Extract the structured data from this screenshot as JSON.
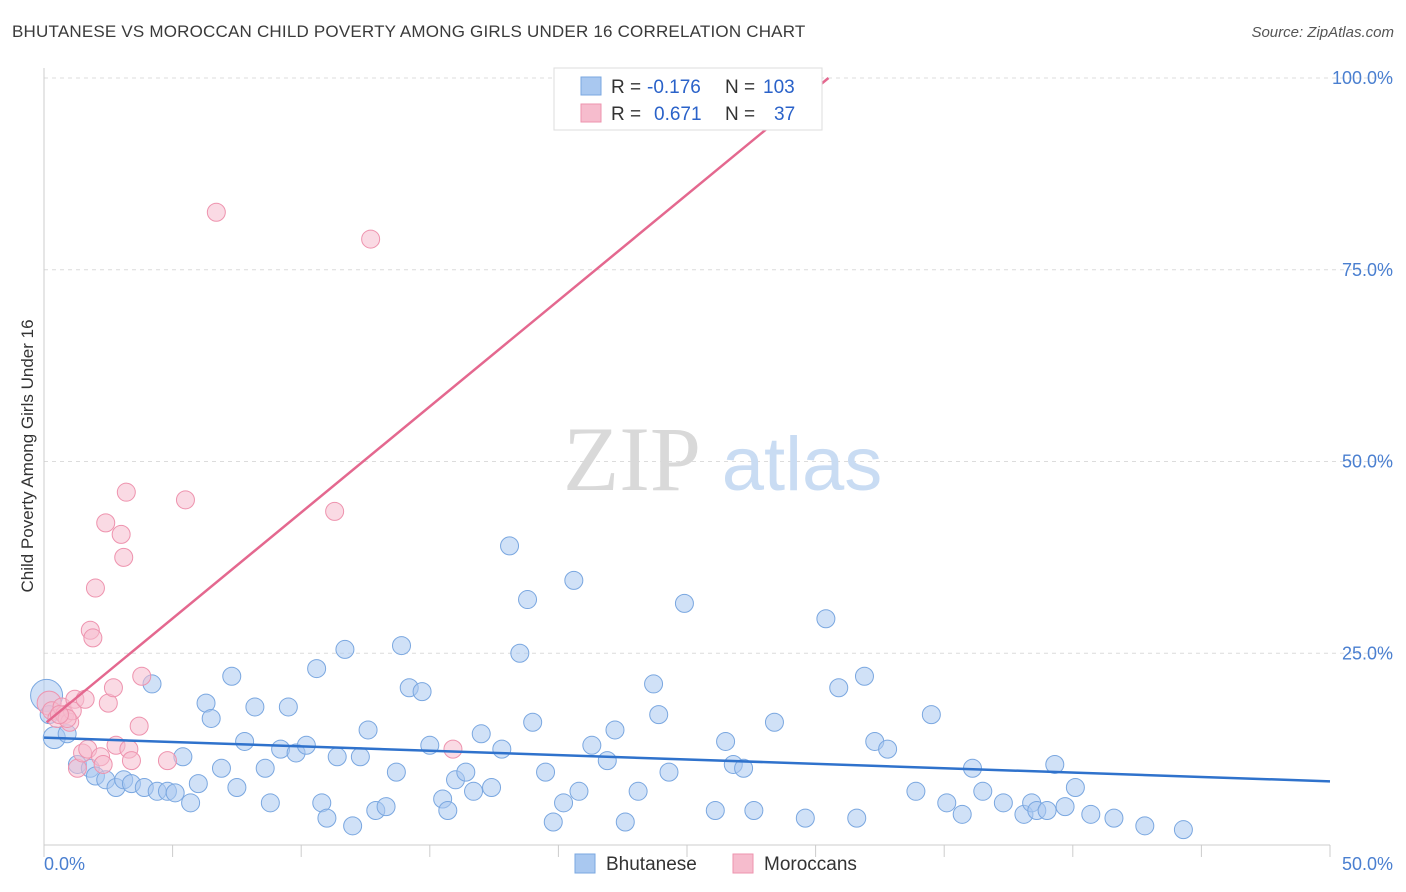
{
  "title": "BHUTANESE VS MOROCCAN CHILD POVERTY AMONG GIRLS UNDER 16 CORRELATION CHART",
  "source": "Source: ZipAtlas.com",
  "watermark": {
    "zip": "ZIP",
    "atlas": "atlas"
  },
  "colors": {
    "bhutanese_fill": "#a9c8f0",
    "bhutanese_stroke": "#7aa7e0",
    "bhutanese_line": "#2f72cc",
    "moroccan_fill": "#f6bccd",
    "moroccan_stroke": "#ee93ae",
    "moroccan_line": "#e4688f",
    "tick_text": "#4a7fd0"
  },
  "legend": {
    "rows": [
      {
        "r_label": "R =",
        "r_value": "-0.176",
        "n_label": "N =",
        "n_value": "103"
      },
      {
        "r_label": "R =",
        "r_value": "0.671",
        "n_label": "N =",
        "n_value": "37"
      }
    ]
  },
  "chart_data": {
    "type": "scatter",
    "xlabel": "",
    "ylabel": "Child Poverty Among Girls Under 16",
    "xlim": [
      0,
      50
    ],
    "ylim": [
      0,
      100
    ],
    "x_tick_labels": [
      "0.0%",
      "50.0%"
    ],
    "y_tick_labels": [
      "100.0%",
      "75.0%",
      "50.0%",
      "25.0%"
    ],
    "y_ticks": [
      100,
      75,
      50,
      25
    ],
    "grid": "horizontal dashed",
    "legend_placement": "top-center",
    "series": [
      {
        "name": "Bhutanese",
        "r": -0.176,
        "n": 103,
        "trend": {
          "x": [
            0,
            50
          ],
          "y": [
            14.0,
            8.3
          ]
        },
        "points": [
          [
            0.1,
            19.5
          ],
          [
            0.2,
            17.0
          ],
          [
            0.4,
            14.0
          ],
          [
            0.9,
            14.5
          ],
          [
            1.3,
            10.5
          ],
          [
            1.8,
            10.0
          ],
          [
            2.0,
            9.0
          ],
          [
            2.4,
            8.5
          ],
          [
            2.8,
            7.5
          ],
          [
            3.1,
            8.5
          ],
          [
            3.4,
            8.0
          ],
          [
            3.9,
            7.5
          ],
          [
            4.2,
            21.0
          ],
          [
            4.4,
            7.0
          ],
          [
            4.8,
            7.0
          ],
          [
            5.1,
            6.8
          ],
          [
            5.4,
            11.5
          ],
          [
            5.7,
            5.5
          ],
          [
            6.0,
            8.0
          ],
          [
            6.3,
            18.5
          ],
          [
            6.5,
            16.5
          ],
          [
            6.9,
            10.0
          ],
          [
            7.3,
            22.0
          ],
          [
            7.5,
            7.5
          ],
          [
            7.8,
            13.5
          ],
          [
            8.2,
            18.0
          ],
          [
            8.6,
            10.0
          ],
          [
            8.8,
            5.5
          ],
          [
            9.2,
            12.5
          ],
          [
            9.5,
            18.0
          ],
          [
            9.8,
            12.0
          ],
          [
            10.2,
            13.0
          ],
          [
            10.6,
            23.0
          ],
          [
            10.8,
            5.5
          ],
          [
            11.0,
            3.5
          ],
          [
            11.4,
            11.5
          ],
          [
            11.7,
            25.5
          ],
          [
            12.0,
            2.5
          ],
          [
            12.3,
            11.5
          ],
          [
            12.6,
            15.0
          ],
          [
            12.9,
            4.5
          ],
          [
            13.3,
            5.0
          ],
          [
            13.7,
            9.5
          ],
          [
            13.9,
            26.0
          ],
          [
            14.2,
            20.5
          ],
          [
            14.7,
            20.0
          ],
          [
            15.0,
            13.0
          ],
          [
            15.5,
            6.0
          ],
          [
            15.7,
            4.5
          ],
          [
            16.0,
            8.5
          ],
          [
            16.4,
            9.5
          ],
          [
            16.7,
            7.0
          ],
          [
            17.0,
            14.5
          ],
          [
            17.4,
            7.5
          ],
          [
            17.8,
            12.5
          ],
          [
            18.1,
            39.0
          ],
          [
            18.5,
            25.0
          ],
          [
            18.8,
            32.0
          ],
          [
            19.0,
            16.0
          ],
          [
            19.5,
            9.5
          ],
          [
            19.8,
            3.0
          ],
          [
            20.2,
            5.5
          ],
          [
            20.6,
            34.5
          ],
          [
            20.8,
            7.0
          ],
          [
            21.3,
            13.0
          ],
          [
            21.9,
            11.0
          ],
          [
            22.2,
            15.0
          ],
          [
            22.6,
            3.0
          ],
          [
            23.1,
            7.0
          ],
          [
            23.7,
            21.0
          ],
          [
            23.9,
            17.0
          ],
          [
            24.3,
            9.5
          ],
          [
            24.9,
            31.5
          ],
          [
            26.1,
            4.5
          ],
          [
            26.5,
            13.5
          ],
          [
            26.8,
            10.5
          ],
          [
            27.2,
            10.0
          ],
          [
            27.6,
            4.5
          ],
          [
            28.4,
            16.0
          ],
          [
            29.6,
            3.5
          ],
          [
            30.4,
            29.5
          ],
          [
            30.9,
            20.5
          ],
          [
            31.6,
            3.5
          ],
          [
            31.9,
            22.0
          ],
          [
            32.3,
            13.5
          ],
          [
            32.8,
            12.5
          ],
          [
            33.9,
            7.0
          ],
          [
            34.5,
            17.0
          ],
          [
            35.1,
            5.5
          ],
          [
            35.7,
            4.0
          ],
          [
            36.1,
            10.0
          ],
          [
            36.5,
            7.0
          ],
          [
            37.3,
            5.5
          ],
          [
            38.1,
            4.0
          ],
          [
            38.4,
            5.5
          ],
          [
            38.6,
            4.5
          ],
          [
            39.0,
            4.5
          ],
          [
            39.3,
            10.5
          ],
          [
            39.7,
            5.0
          ],
          [
            40.1,
            7.5
          ],
          [
            40.7,
            4.0
          ],
          [
            41.6,
            3.5
          ],
          [
            42.8,
            2.5
          ],
          [
            44.3,
            2.0
          ]
        ]
      },
      {
        "name": "Moroccans",
        "r": 0.671,
        "n": 37,
        "trend": {
          "x": [
            0.1,
            30.5
          ],
          "y": [
            16.0,
            100.0
          ]
        },
        "points": [
          [
            0.2,
            18.5
          ],
          [
            0.3,
            17.5
          ],
          [
            0.5,
            16.5
          ],
          [
            0.7,
            18.0
          ],
          [
            0.8,
            17.0
          ],
          [
            1.0,
            16.0
          ],
          [
            1.2,
            19.0
          ],
          [
            1.3,
            10.0
          ],
          [
            1.5,
            12.0
          ],
          [
            1.7,
            12.5
          ],
          [
            1.8,
            28.0
          ],
          [
            1.9,
            27.0
          ],
          [
            2.0,
            33.5
          ],
          [
            2.2,
            11.5
          ],
          [
            2.3,
            10.5
          ],
          [
            2.4,
            42.0
          ],
          [
            2.5,
            18.5
          ],
          [
            2.7,
            20.5
          ],
          [
            2.8,
            13.0
          ],
          [
            3.0,
            40.5
          ],
          [
            3.1,
            37.5
          ],
          [
            3.2,
            46.0
          ],
          [
            3.3,
            12.5
          ],
          [
            3.4,
            11.0
          ],
          [
            3.7,
            15.5
          ],
          [
            3.8,
            22.0
          ],
          [
            4.8,
            11.0
          ],
          [
            5.5,
            45.0
          ],
          [
            6.7,
            82.5
          ],
          [
            11.3,
            43.5
          ],
          [
            12.7,
            79.0
          ],
          [
            15.9,
            12.5
          ],
          [
            25.7,
            100.0
          ],
          [
            1.1,
            17.5
          ],
          [
            0.9,
            16.5
          ],
          [
            1.6,
            19.0
          ],
          [
            0.6,
            17.0
          ]
        ]
      }
    ]
  },
  "bottom_legend": [
    {
      "label": "Bhutanese"
    },
    {
      "label": "Moroccans"
    }
  ]
}
